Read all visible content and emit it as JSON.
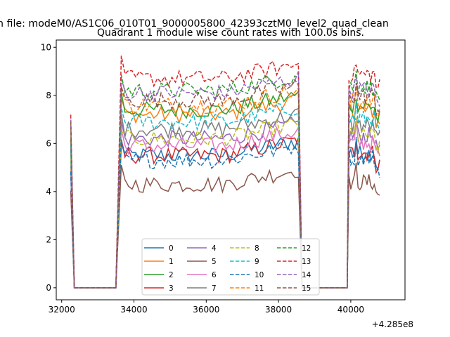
{
  "chart_data": {
    "type": "line",
    "suptitle": "n file: modeM0/AS1C06_010T01_9000005800_42393cztM0_level2_quad_clean",
    "title": "Quadrant 1 module wise count rates with 100.0s bins.",
    "xlabel": "",
    "ylabel": "",
    "xlim": [
      31850,
      41500
    ],
    "ylim": [
      -0.5,
      10.3
    ],
    "x_offset_label": "+4.285e8",
    "x_ticks": [
      32000,
      34000,
      36000,
      38000,
      40000
    ],
    "y_ticks": [
      0,
      2,
      4,
      6,
      8,
      10
    ],
    "grid": false,
    "legend_position": "lower-center",
    "legend_columns": 4,
    "segments": [
      {
        "start": 32300,
        "end": 32300
      },
      {
        "start": 33600,
        "end": 38600
      },
      {
        "start": 39950,
        "end": 40800
      }
    ],
    "series": [
      {
        "name": "0",
        "color": "#1f77b4",
        "dash": false,
        "level": 5.5
      },
      {
        "name": "1",
        "color": "#ff7f0e",
        "dash": false,
        "level": 7.2
      },
      {
        "name": "2",
        "color": "#2ca02c",
        "dash": false,
        "level": 7.4
      },
      {
        "name": "3",
        "color": "#d62728",
        "dash": false,
        "level": 5.5
      },
      {
        "name": "4",
        "color": "#9467bd",
        "dash": false,
        "level": 6.2
      },
      {
        "name": "5",
        "color": "#8c564b",
        "dash": false,
        "level": 4.3
      },
      {
        "name": "6",
        "color": "#e377c2",
        "dash": false,
        "level": 5.9
      },
      {
        "name": "7",
        "color": "#7f7f7f",
        "dash": false,
        "level": 6.6
      },
      {
        "name": "8",
        "color": "#bcbd22",
        "dash": true,
        "level": 6.2
      },
      {
        "name": "9",
        "color": "#17becf",
        "dash": true,
        "level": 6.9
      },
      {
        "name": "10",
        "color": "#1f77b4",
        "dash": true,
        "level": 5.3
      },
      {
        "name": "11",
        "color": "#ff7f0e",
        "dash": true,
        "level": 7.6
      },
      {
        "name": "12",
        "color": "#2ca02c",
        "dash": true,
        "level": 8.2
      },
      {
        "name": "13",
        "color": "#d62728",
        "dash": true,
        "level": 8.7
      },
      {
        "name": "14",
        "color": "#9467bd",
        "dash": true,
        "level": 8.1
      },
      {
        "name": "15",
        "color": "#8c564b",
        "dash": true,
        "level": 7.8
      }
    ]
  }
}
